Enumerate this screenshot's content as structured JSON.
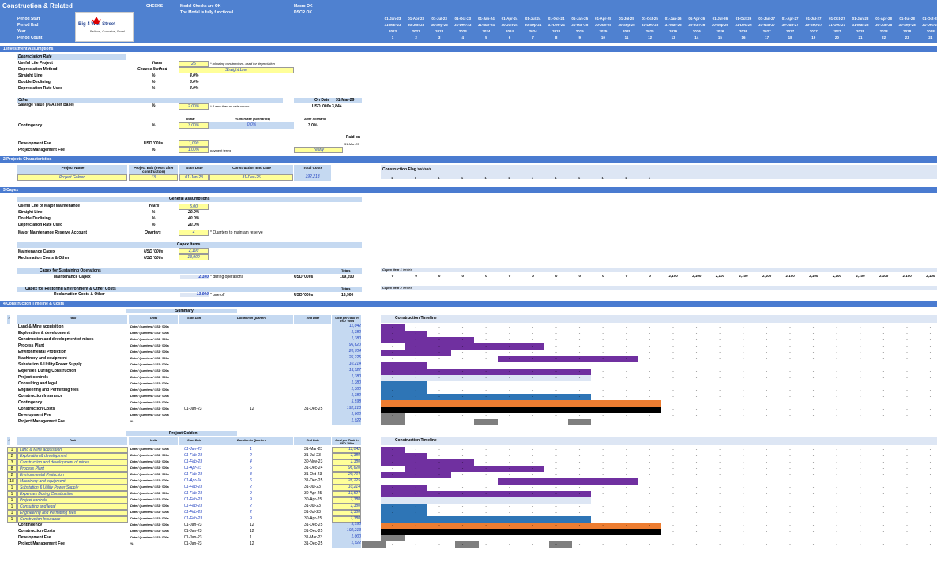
{
  "header": {
    "title": "Construction & Related",
    "checks_label": "CHECKS",
    "checks": [
      "Model Checks are OK",
      "The Model is fully functional"
    ],
    "macro": [
      "Macro OK",
      "DSCR OK"
    ],
    "row_labels": [
      "Period Start",
      "Period End",
      "Year",
      "Period Count"
    ],
    "logo_text": "Big 4 Wall Street",
    "logo_sub": "Believe, Conceive, Excel",
    "period_start": [
      "01-Jan-23",
      "01-Apr-23",
      "01-Jul-23",
      "01-Oct-23",
      "01-Jan-24",
      "01-Apr-24",
      "01-Jul-24",
      "01-Oct-24",
      "01-Jan-25",
      "01-Apr-25",
      "01-Jul-25",
      "01-Oct-25",
      "01-Jan-26",
      "01-Apr-26",
      "01-Jul-26",
      "01-Oct-26",
      "01-Jan-27",
      "01-Apr-27",
      "01-Jul-27",
      "01-Oct-27",
      "01-Jan-28",
      "01-Apr-28",
      "01-Jul-28",
      "01-Oct-28"
    ],
    "period_end": [
      "31-Mar-23",
      "30-Jun-23",
      "30-Sep-23",
      "31-Dec-23",
      "31-Mar-24",
      "30-Jun-24",
      "30-Sep-24",
      "31-Dec-24",
      "31-Mar-25",
      "30-Jun-25",
      "30-Sep-25",
      "31-Dec-25",
      "31-Mar-26",
      "30-Jun-26",
      "30-Sep-26",
      "31-Dec-26",
      "31-Mar-27",
      "30-Jun-27",
      "30-Sep-27",
      "31-Dec-27",
      "31-Mar-28",
      "30-Jun-28",
      "30-Sep-28",
      "31-Dec-28"
    ],
    "year": [
      "2023",
      "2023",
      "2023",
      "2023",
      "2024",
      "2024",
      "2024",
      "2024",
      "2025",
      "2025",
      "2025",
      "2025",
      "2026",
      "2026",
      "2026",
      "2026",
      "2027",
      "2027",
      "2027",
      "2027",
      "2028",
      "2028",
      "2028",
      "2028"
    ],
    "period_count": [
      "1",
      "2",
      "3",
      "4",
      "5",
      "6",
      "7",
      "8",
      "9",
      "10",
      "11",
      "12",
      "13",
      "14",
      "15",
      "16",
      "17",
      "18",
      "19",
      "20",
      "21",
      "22",
      "23",
      "24"
    ]
  },
  "sections": {
    "s1": "1  Investment Assumptions",
    "s2": "2  Projects Characteristics",
    "s3": "3  Capex",
    "s4": "4  Construction Timeline & Costs"
  },
  "investment": {
    "dep_rate": "Depreciation Rate",
    "rows": [
      {
        "label": "Useful Life Project",
        "unit": "Years",
        "val": "25",
        "note": "* following construction - used for depreciation"
      },
      {
        "label": "Depreciation Method",
        "unit": "Choose Method",
        "val": "Straight Line"
      },
      {
        "label": "Straight Line",
        "unit": "%",
        "val": "4.0%"
      },
      {
        "label": "Double Declining",
        "unit": "%",
        "val": "8.0%"
      },
      {
        "label": "Depreciation Rate Used",
        "unit": "%",
        "val": "4.0%"
      }
    ],
    "other": "Other",
    "on_date": "On Date",
    "on_date_val": "31-Mar-29",
    "salvage_label": "Salvage Value (% Asset Base)",
    "salvage_unit": "%",
    "salvage_val": "2.00%",
    "salvage_note": "* if zero then no sale occurs",
    "salvage_ccy": "USD '000s",
    "salvage_amt": "3,844",
    "initial": "Initial",
    "increase": "% Increase (Scenarios)",
    "after": "After Scenario",
    "contingency_label": "Contingency",
    "contingency_unit": "%",
    "contingency_init": "3.00%",
    "contingency_inc": "0.0%",
    "contingency_after": "3.0%",
    "paid_on": "Paid on",
    "paid_on_date": "31-Mar-23",
    "dev_fee_label": "Development Fee",
    "dev_fee_unit": "USD '000s",
    "dev_fee_val": "1,000",
    "pm_fee_label": "Project Management Fee",
    "pm_fee_unit": "%",
    "pm_fee_val": "1.00%",
    "pm_terms": "payment terms",
    "pm_freq": "Yearly"
  },
  "projects": {
    "headers": [
      "Project Name",
      "Project Exit (Years after construction)",
      "Start Date",
      "Construction End Date",
      "Total Costs"
    ],
    "row": [
      "Project Golden",
      "13",
      "01-Jan-23",
      "31-Dec-25",
      "192,213"
    ],
    "flag_label": "Construction Flag >>>>>>",
    "flags": [
      "1",
      "1",
      "1",
      "1",
      "1",
      "1",
      "1",
      "1",
      "1",
      "1",
      "1",
      "1",
      "-",
      "-",
      "-",
      "-",
      "-",
      "-",
      "-",
      "-",
      "-",
      "-",
      "-",
      "-"
    ]
  },
  "capex": {
    "general": "General Assumptions",
    "rows": [
      {
        "label": "Useful Life of Major Maintenance",
        "unit": "Years",
        "val": "5.00"
      },
      {
        "label": "Straight Line",
        "unit": "%",
        "val": "20.0%"
      },
      {
        "label": "Double Declining",
        "unit": "%",
        "val": "40.0%"
      },
      {
        "label": "Depreciation Rate Used",
        "unit": "%",
        "val": "20.0%"
      }
    ],
    "reserve_label": "Major Maintenance Reserve Account",
    "reserve_unit": "Quarters",
    "reserve_val": "4",
    "reserve_note": "* Quarters to maintain reserve",
    "items": "Capex Items",
    "maint_label": "Maintenance Capex",
    "maint_unit": "USD '000s",
    "maint_val": "2,100",
    "recl_label": "Reclamation Costs & Other",
    "recl_unit": "USD '000s",
    "recl_val": "13,900",
    "sustain_title": "Capex for Sustaining Operations",
    "sustain_item": "Maintenance Capex",
    "sustain_val": "2,100",
    "sustain_note": "* during operations",
    "totals": "Totals",
    "ccy": "USD '000s",
    "sustain_total": "109,200",
    "item1_label": "Capex Item 1 >>>>>",
    "item1_vals": [
      "0",
      "0",
      "0",
      "0",
      "0",
      "0",
      "0",
      "0",
      "0",
      "0",
      "0",
      "0",
      "2,100",
      "2,100",
      "2,100",
      "2,100",
      "2,100",
      "2,100",
      "2,100",
      "2,100",
      "2,100",
      "2,100",
      "2,100",
      "2,100"
    ],
    "restore_title": "Capex for Restoring Environment & Other Costs",
    "restore_item": "Reclamation Costs & Other",
    "restore_val": "13,900",
    "restore_note": "* one off",
    "restore_total": "13,900",
    "item2_label": "Capex Item 2 >>>>>"
  },
  "timeline": {
    "summary": "Summary",
    "golden": "Project Golden",
    "cols": [
      "#",
      "Task",
      "Units",
      "Start Date",
      "Duration in Quarters",
      "End Date",
      "Cost per Task in USD '000s"
    ],
    "chart_title": "Construction Timeline",
    "units_text": "Date / Quarters / USD '000s",
    "tasks": [
      {
        "n": "1",
        "task": "Land & Mine acquisition",
        "cost": "11,042",
        "start": "01-Jan-23",
        "dur": "1",
        "end": "31-Mar-23"
      },
      {
        "n": "2",
        "task": "Exploration & development",
        "cost": "1,380",
        "start": "01-Feb-23",
        "dur": "2",
        "end": "31-Jul-23"
      },
      {
        "n": "3",
        "task": "Construction and development of mines",
        "cost": "1,380",
        "start": "01-Feb-23",
        "dur": "4",
        "end": "30-Nov-23"
      },
      {
        "n": "8",
        "task": "Process Plant",
        "cost": "96,620",
        "start": "01-Apr-23",
        "dur": "6",
        "end": "31-Dec-24"
      },
      {
        "n": "2",
        "task": "Environmental Protection",
        "cost": "20,704",
        "start": "01-Feb-23",
        "dur": "3",
        "end": "31-Oct-23"
      },
      {
        "n": "18",
        "task": "Machinery and equipment",
        "cost": "26,225",
        "start": "01-Apr-24",
        "dur": "6",
        "end": "31-Dec-25"
      },
      {
        "n": "1",
        "task": "Substation & Utility Power Supply",
        "cost": "10,214",
        "start": "01-Feb-23",
        "dur": "2",
        "end": "31-Jul-23"
      },
      {
        "n": "1",
        "task": "Expenses During Construction",
        "cost": "13,527",
        "start": "01-Feb-23",
        "dur": "9",
        "end": "30-Apr-25"
      },
      {
        "n": "1",
        "task": "Project controls",
        "cost": "1,380",
        "start": "01-Feb-23",
        "dur": "9",
        "end": "30-Apr-25"
      },
      {
        "n": "1",
        "task": "Consulting and legal",
        "cost": "1,380",
        "start": "01-Feb-23",
        "dur": "2",
        "end": "31-Jul-23"
      },
      {
        "n": "1",
        "task": "Engineering and Permitting fees",
        "cost": "1,380",
        "start": "01-Feb-23",
        "dur": "2",
        "end": "31-Jul-23"
      },
      {
        "n": "1",
        "task": "Construction Insurance",
        "cost": "1,380",
        "start": "01-Feb-23",
        "dur": "9",
        "end": "30-Apr-25"
      }
    ],
    "tail": [
      {
        "task": "Contingency",
        "cost": "5,598",
        "start": "01-Jan-23",
        "dur": "12",
        "end": "31-Dec-25",
        "unit": "Date / Quarters / USD '000s"
      },
      {
        "task": "Construction Costs",
        "cost": "192,213",
        "start": "01-Jan-23",
        "dur": "12",
        "end": "31-Dec-25",
        "unit": "Date / Quarters / USD '000s"
      },
      {
        "task": "Development Fee",
        "cost": "1,000",
        "start": "01-Jan-23",
        "dur": "1",
        "end": "31-Mar-23",
        "unit": "Date / Quarters / USD '000s"
      },
      {
        "task": "Project Management Fee",
        "cost": "1,922",
        "start": "01-Jan-23",
        "dur": "12",
        "end": "31-Dec-25",
        "unit": "%"
      }
    ],
    "summary_total_start": "01-Jan-23",
    "summary_total_dur": "12",
    "summary_total_end": "31-Dec-25",
    "colors": {
      "purple": "#7030a0",
      "blue": "#2e75b6",
      "orange": "#ed7d31",
      "black": "#000000",
      "gray": "#7f7f7f",
      "light": "#dde6f4"
    }
  }
}
